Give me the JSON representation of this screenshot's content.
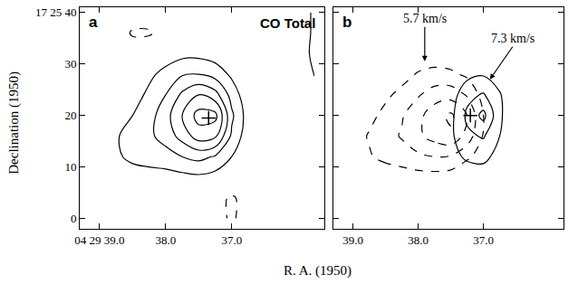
{
  "chart_data": [
    {
      "type": "contour",
      "title": "a",
      "xlim": [
        39.3,
        35.6
      ],
      "ylim": [
        -2,
        41
      ],
      "xticks": [
        {
          "value": 39,
          "label": "04 29 39.0"
        },
        {
          "value": 38,
          "label": "38.0"
        },
        {
          "value": 37,
          "label": "37.0"
        }
      ],
      "yticks": [
        {
          "value": 40,
          "label": "17 25 40"
        },
        30,
        20,
        10,
        0
      ],
      "grid": false,
      "x": [
        39.25,
        39.0,
        38.75,
        38.5,
        38.25,
        38.0,
        37.75,
        37.5,
        37.25,
        37.0,
        36.75,
        36.5,
        36.25,
        36.0,
        35.75
      ],
      "y": [
        0,
        4,
        8,
        12,
        16,
        20,
        24,
        28,
        32,
        36,
        40
      ],
      "peak": {
        "x": 37.35,
        "y": 19.5,
        "marker": "cross"
      },
      "series": [
        {
          "name": "CO Total",
          "line_style": "solid",
          "levels": [
            1,
            2,
            3,
            4,
            5
          ],
          "negative_levels": [
            -1
          ],
          "z": [
            [
              0,
              0,
              0,
              0,
              0,
              0,
              0,
              0,
              -0.5,
              -1.2,
              -0.4,
              0,
              0,
              0,
              0
            ],
            [
              0,
              0,
              0,
              0,
              0,
              0,
              0,
              0,
              -0.5,
              -1.2,
              -0.4,
              0,
              0,
              0,
              0
            ],
            [
              0,
              0,
              0.2,
              0.4,
              0.5,
              0.6,
              0.7,
              0.8,
              0.6,
              0.3,
              0,
              0,
              0,
              0,
              0
            ],
            [
              0,
              0,
              0.8,
              1.3,
              1.5,
              1.6,
              2.0,
              2.3,
              1.9,
              1.0,
              0.3,
              0,
              0,
              0,
              0
            ],
            [
              0,
              0.2,
              0.9,
              1.4,
              1.8,
              2.4,
              3.4,
              4.5,
              4.2,
              1.8,
              0.4,
              0,
              0,
              0,
              0
            ],
            [
              0,
              0,
              0.5,
              1.0,
              1.6,
              2.6,
              4.0,
              5.4,
              5.3,
              2.2,
              0.5,
              0,
              0,
              0,
              0
            ],
            [
              0,
              0,
              0,
              0.6,
              1.2,
              2.0,
              3.2,
              4.0,
              3.4,
              1.6,
              0.3,
              0,
              0,
              0,
              0
            ],
            [
              0,
              0,
              0,
              0.3,
              0.8,
              1.3,
              1.9,
              2.0,
              1.6,
              0.8,
              0,
              0,
              0,
              0.3,
              1.1
            ],
            [
              0,
              0,
              0,
              0,
              0.3,
              0.5,
              0.7,
              0.7,
              0.5,
              0,
              0,
              0,
              0,
              0.3,
              1.3
            ],
            [
              0,
              0,
              0,
              -1.2,
              -1.2,
              -0.3,
              0,
              0,
              0,
              0,
              0,
              0,
              0,
              0.3,
              1.2
            ],
            [
              0,
              0,
              0,
              0,
              0,
              0,
              0,
              0,
              0,
              0,
              0,
              0,
              0,
              0.3,
              1.2
            ]
          ]
        }
      ]
    },
    {
      "type": "contour",
      "title": "b",
      "tick_labels": "x",
      "xlim": [
        39.3,
        35.77
      ],
      "ylim": [
        -2,
        41
      ],
      "xticks": [
        {
          "value": 39,
          "label": "39.0"
        },
        {
          "value": 38,
          "label": "38.0"
        },
        {
          "value": 37,
          "label": "37.0"
        }
      ],
      "yticks": [
        40,
        30,
        20,
        10,
        0
      ],
      "grid": false,
      "x": [
        39.25,
        39.0,
        38.75,
        38.5,
        38.25,
        38.0,
        37.75,
        37.5,
        37.25,
        37.0,
        36.75,
        36.5,
        36.25,
        36.0,
        35.75
      ],
      "y": [
        0,
        4,
        8,
        12,
        16,
        20,
        24,
        28,
        32,
        36,
        40
      ],
      "peak": {
        "x": 37.2,
        "y": 20,
        "marker": "cross"
      },
      "series": [
        {
          "name": "5.7 km/s",
          "line_style": "dash",
          "levels": [
            1,
            2,
            3,
            4
          ],
          "arrow_x": 37.9,
          "arrow_y": 30.5,
          "z": [
            [
              0,
              0,
              0,
              0,
              0,
              0,
              0,
              0,
              0,
              0,
              0,
              0,
              0,
              0,
              0
            ],
            [
              0,
              0,
              0,
              0,
              0,
              0,
              0,
              0,
              0,
              0,
              0,
              0,
              0,
              0,
              0
            ],
            [
              0,
              0,
              0,
              0.3,
              0.5,
              0.6,
              0.6,
              0.5,
              0,
              0,
              0,
              0,
              0,
              0,
              0
            ],
            [
              0,
              0.3,
              0.9,
              1.3,
              1.5,
              1.8,
              2.0,
              1.9,
              1.2,
              0.5,
              0,
              0,
              0,
              0,
              0
            ],
            [
              0,
              0.5,
              1.1,
              1.6,
              2.1,
              2.8,
              3.4,
              3.8,
              2.6,
              0.9,
              0,
              0,
              0,
              0,
              0
            ],
            [
              0,
              0,
              0.7,
              1.3,
              1.9,
              2.7,
              3.6,
              4.2,
              3.0,
              1.0,
              0,
              0,
              0,
              0,
              0
            ],
            [
              0,
              0,
              0,
              0.8,
              1.3,
              1.9,
              2.5,
              2.6,
              1.9,
              0.6,
              0,
              0,
              0,
              0,
              0
            ],
            [
              0,
              0,
              0,
              0,
              0.6,
              1.1,
              1.3,
              1.2,
              0.8,
              0,
              0,
              0,
              0,
              0,
              0
            ],
            [
              0,
              0,
              0,
              0,
              0,
              0.3,
              0.4,
              0.3,
              0,
              0,
              0,
              0,
              0,
              0,
              0
            ],
            [
              0,
              0,
              0,
              0,
              0,
              0,
              0,
              0,
              0,
              0,
              0,
              0,
              0,
              0,
              0
            ],
            [
              0,
              0,
              0,
              0,
              0,
              0,
              0,
              0,
              0,
              0,
              0,
              0,
              0,
              0,
              0
            ]
          ]
        },
        {
          "name": "7.3 km/s",
          "line_style": "solid",
          "levels": [
            1,
            2,
            3
          ],
          "arrow_x": 36.9,
          "arrow_y": 27,
          "z": [
            [
              0,
              0,
              0,
              0,
              0,
              0,
              0,
              0,
              0,
              0,
              0,
              0,
              0,
              0,
              0
            ],
            [
              0,
              0,
              0,
              0,
              0,
              0,
              0,
              0,
              0,
              0,
              0,
              0,
              0,
              0,
              0
            ],
            [
              0,
              0,
              0,
              0,
              0,
              0,
              0,
              0,
              0.3,
              0.4,
              0,
              0,
              0,
              0,
              0
            ],
            [
              0,
              0,
              0,
              0,
              0,
              0,
              0,
              0.6,
              1.2,
              1.3,
              0.6,
              0,
              0,
              0,
              0
            ],
            [
              0,
              0,
              0,
              0,
              0,
              0,
              0,
              0.8,
              1.8,
              2.1,
              1.0,
              0,
              0,
              0,
              0
            ],
            [
              0,
              0,
              0,
              0,
              0,
              0,
              0,
              0.7,
              2.2,
              3.3,
              1.2,
              0,
              0,
              0,
              0
            ],
            [
              0,
              0,
              0,
              0,
              0,
              0,
              0,
              0.5,
              1.7,
              2.1,
              1.1,
              0,
              0,
              0,
              0
            ],
            [
              0,
              0,
              0,
              0,
              0,
              0,
              0,
              0,
              0.7,
              0.9,
              0.5,
              0,
              0,
              0,
              0
            ],
            [
              0,
              0,
              0,
              0,
              0,
              0,
              0,
              0,
              0,
              0,
              0,
              0,
              0,
              0,
              0
            ],
            [
              0,
              0,
              0,
              0,
              0,
              0,
              0,
              0,
              0,
              0,
              0,
              0,
              0,
              0,
              0
            ],
            [
              0,
              0,
              0,
              0,
              0,
              0,
              0,
              0,
              0,
              0,
              0,
              0,
              0,
              0,
              0
            ]
          ]
        }
      ]
    }
  ],
  "x_label": "R. A. (1950)",
  "y_label": "Declination (1950)"
}
